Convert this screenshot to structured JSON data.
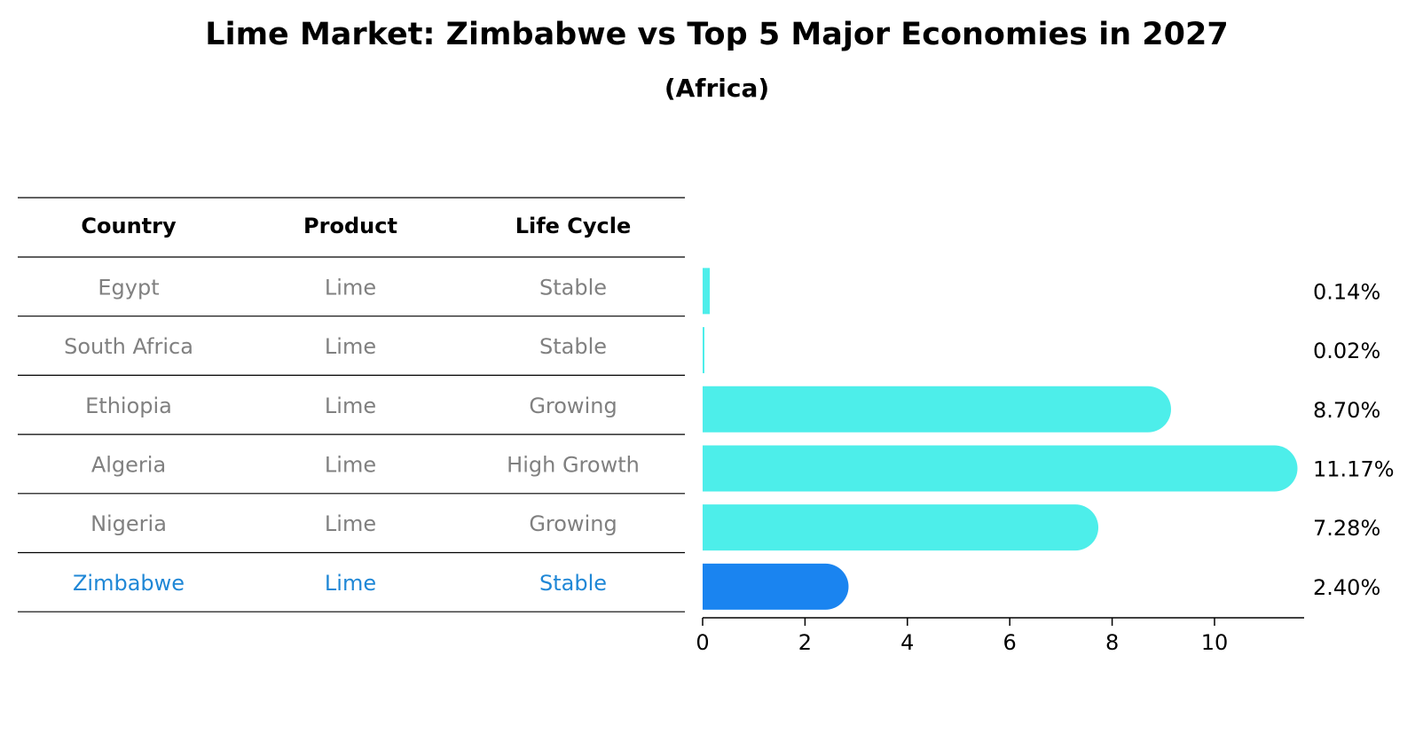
{
  "chart_data": {
    "type": "bar",
    "orientation": "horizontal",
    "title": "Lime Market: Zimbabwe vs Top 5 Major Economies in 2027",
    "subtitle": "(Africa)",
    "table": {
      "columns": [
        "Country",
        "Product",
        "Life Cycle"
      ],
      "rows": [
        {
          "country": "Egypt",
          "product": "Lime",
          "life_cycle": "Stable"
        },
        {
          "country": "South Africa",
          "product": "Lime",
          "life_cycle": "Stable"
        },
        {
          "country": "Ethiopia",
          "product": "Lime",
          "life_cycle": "Growing"
        },
        {
          "country": "Algeria",
          "product": "Lime",
          "life_cycle": "High Growth"
        },
        {
          "country": "Nigeria",
          "product": "Lime",
          "life_cycle": "Growing"
        },
        {
          "country": "Zimbabwe",
          "product": "Lime",
          "life_cycle": "Stable"
        }
      ]
    },
    "categories": [
      "Egypt",
      "South Africa",
      "Ethiopia",
      "Algeria",
      "Nigeria",
      "Zimbabwe"
    ],
    "values": [
      0.14,
      0.02,
      8.7,
      11.17,
      7.28,
      2.4
    ],
    "value_labels": [
      "0.14%",
      "0.02%",
      "8.70%",
      "11.17%",
      "7.28%",
      "2.40%"
    ],
    "highlight": "Zimbabwe",
    "xlim": [
      0,
      11.5
    ],
    "xticks": [
      0,
      2,
      4,
      6,
      8,
      10
    ],
    "xtick_labels": [
      "0",
      "2",
      "4",
      "6",
      "8",
      "10"
    ],
    "colors": {
      "bar": "#4deeea",
      "highlight_bar": "#1a84f0",
      "highlight_text": "#1f87d6",
      "table_text": "#808080",
      "header_text": "#000000",
      "lines": "#000000"
    },
    "grid": false
  }
}
